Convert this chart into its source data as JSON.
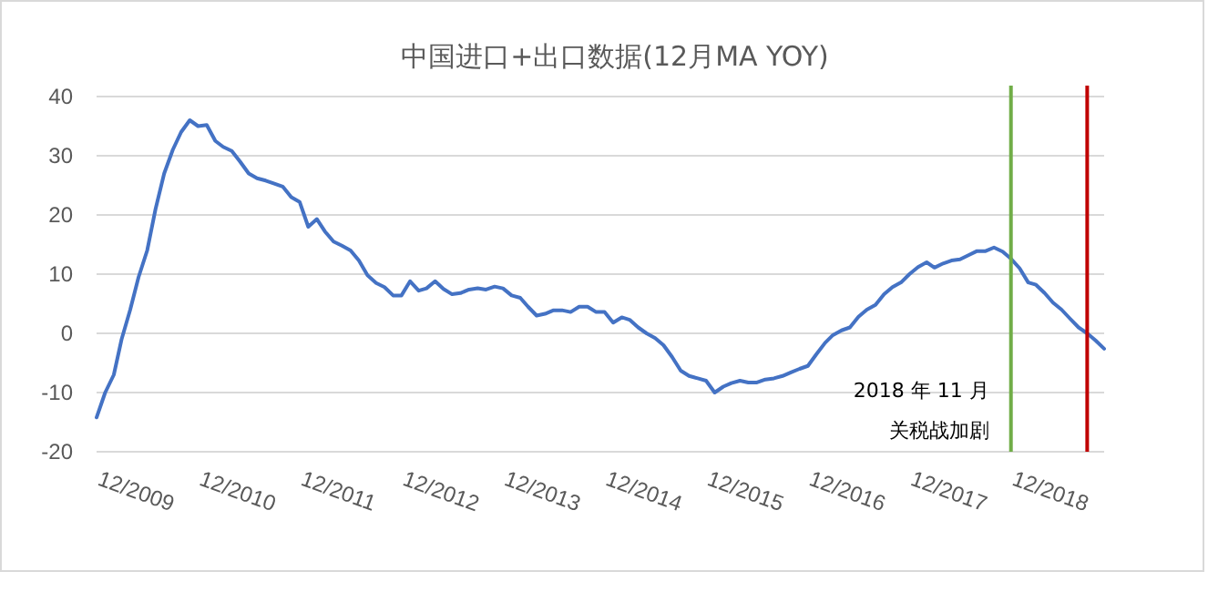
{
  "chart_data": {
    "type": "line",
    "title": "中国进口+出口数据(12月MA YOY)",
    "x": [
      "2009-12",
      "2010-01",
      "2010-02",
      "2010-03",
      "2010-04",
      "2010-05",
      "2010-06",
      "2010-07",
      "2010-08",
      "2010-09",
      "2010-10",
      "2010-11",
      "2010-12",
      "2011-01",
      "2011-02",
      "2011-03",
      "2011-04",
      "2011-05",
      "2011-06",
      "2011-07",
      "2011-08",
      "2011-09",
      "2011-10",
      "2011-11",
      "2011-12",
      "2012-01",
      "2012-02",
      "2012-03",
      "2012-04",
      "2012-05",
      "2012-06",
      "2012-07",
      "2012-08",
      "2012-09",
      "2012-10",
      "2012-11",
      "2012-12",
      "2013-01",
      "2013-02",
      "2013-03",
      "2013-04",
      "2013-05",
      "2013-06",
      "2013-07",
      "2013-08",
      "2013-09",
      "2013-10",
      "2013-11",
      "2013-12",
      "2014-01",
      "2014-02",
      "2014-03",
      "2014-04",
      "2014-05",
      "2014-06",
      "2014-07",
      "2014-08",
      "2014-09",
      "2014-10",
      "2014-11",
      "2014-12",
      "2015-01",
      "2015-02",
      "2015-03",
      "2015-04",
      "2015-05",
      "2015-06",
      "2015-07",
      "2015-08",
      "2015-09",
      "2015-10",
      "2015-11",
      "2015-12",
      "2016-01",
      "2016-02",
      "2016-03",
      "2016-04",
      "2016-05",
      "2016-06",
      "2016-07",
      "2016-08",
      "2016-09",
      "2016-10",
      "2016-11",
      "2016-12",
      "2017-01",
      "2017-02",
      "2017-03",
      "2017-04",
      "2017-05",
      "2017-06",
      "2017-07",
      "2017-08",
      "2017-09",
      "2017-10",
      "2017-11",
      "2017-12",
      "2018-01",
      "2018-02",
      "2018-03",
      "2018-04",
      "2018-05",
      "2018-06",
      "2018-07",
      "2018-08",
      "2018-09",
      "2018-10",
      "2018-11",
      "2018-12",
      "2019-01",
      "2019-02",
      "2019-03",
      "2019-04",
      "2019-05",
      "2019-06",
      "2019-07",
      "2019-08",
      "2019-09",
      "2019-10",
      "2019-11"
    ],
    "series": [
      {
        "color": "#4472c4",
        "values": [
          -14.2,
          -10,
          -7,
          -1,
          4,
          9.5,
          14,
          21,
          27,
          31,
          34,
          36,
          35,
          35.2,
          32.5,
          31.5,
          30.8,
          29,
          27,
          26.2,
          25.8,
          25.3,
          24.8,
          23,
          22.2,
          18,
          19.3,
          17.2,
          15.5,
          14.8,
          14,
          12.3,
          9.8,
          8.5,
          7.8,
          6.4,
          6.4,
          8.8,
          7.2,
          7.6,
          8.8,
          7.5,
          6.6,
          6.8,
          7.4,
          7.6,
          7.4,
          7.9,
          7.6,
          6.4,
          6,
          4.5,
          3,
          3.3,
          3.9,
          3.9,
          3.6,
          4.5,
          4.5,
          3.6,
          3.6,
          1.8,
          2.7,
          2.3,
          1,
          0,
          -0.8,
          -2,
          -4,
          -6.3,
          -7.2,
          -7.6,
          -8,
          -10,
          -9,
          -8.4,
          -8,
          -8.3,
          -8.3,
          -7.8,
          -7.6,
          -7.2,
          -6.6,
          -6,
          -5.5,
          -3.5,
          -1.6,
          -0.3,
          0.5,
          1,
          2.8,
          4,
          4.8,
          6.6,
          7.8,
          8.6,
          10,
          11.2,
          12,
          11.1,
          11.8,
          12.3,
          12.5,
          13.2,
          13.9,
          13.9,
          14.5,
          13.8,
          12.6,
          11,
          8.6,
          8.2,
          6.8,
          5.2,
          4,
          2.5,
          1,
          0,
          -1.2,
          -2.6
        ]
      }
    ],
    "xlim": [
      "2009-12",
      "2019-11"
    ],
    "xticks": [
      {
        "value": "2009-12",
        "label": "12/2009"
      },
      {
        "value": "2010-12",
        "label": "12/2010"
      },
      {
        "value": "2011-12",
        "label": "12/2011"
      },
      {
        "value": "2012-12",
        "label": "12/2012"
      },
      {
        "value": "2013-12",
        "label": "12/2013"
      },
      {
        "value": "2014-12",
        "label": "12/2014"
      },
      {
        "value": "2015-12",
        "label": "12/2015"
      },
      {
        "value": "2016-12",
        "label": "12/2016"
      },
      {
        "value": "2017-12",
        "label": "12/2017"
      },
      {
        "value": "2018-12",
        "label": "12/2018"
      }
    ],
    "ylim": [
      -20,
      40
    ],
    "yticks": [
      -20,
      -10,
      0,
      10,
      20,
      30,
      40
    ],
    "grid": "y",
    "marker": "none",
    "line_style": "solid",
    "ref_lines": [
      {
        "axis": "x",
        "value": "2018-12",
        "label": "2018 年 11 月",
        "color": "#70ad47"
      },
      {
        "axis": "x",
        "value": "2019-09",
        "color": "#c00000"
      }
    ],
    "annotations": [
      "关税战加剧"
    ]
  }
}
